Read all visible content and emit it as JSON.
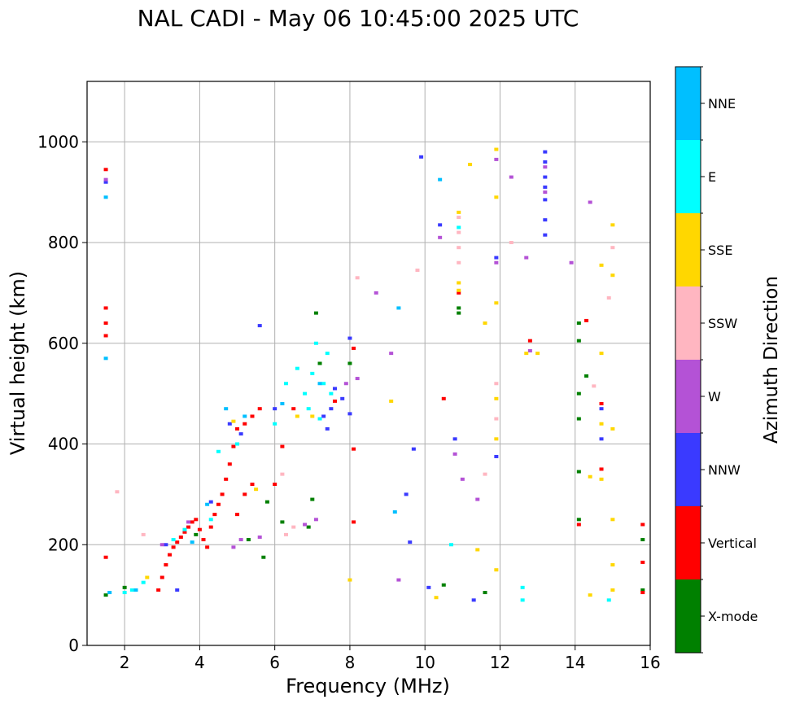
{
  "chart_data": {
    "type": "scatter",
    "title": "NAL CADI - May 06 10:45:00 2025 UTC",
    "xlabel": "Frequency (MHz)",
    "ylabel": "Virtual height (km)",
    "xlim": [
      1,
      16
    ],
    "ylim": [
      0,
      1120
    ],
    "x_ticks": [
      2,
      4,
      6,
      8,
      10,
      12,
      14,
      16
    ],
    "y_ticks": [
      0,
      200,
      400,
      600,
      800,
      1000
    ],
    "x_tick_labels": [
      "2",
      "4",
      "6",
      "8",
      "10",
      "12",
      "14",
      "16"
    ],
    "y_tick_labels": [
      "0",
      "200",
      "400",
      "600",
      "800",
      "1000"
    ],
    "grid": true,
    "colorbar": {
      "label": "Azimuth Direction",
      "categories": [
        {
          "name": "X-mode",
          "color": "#008000"
        },
        {
          "name": "Vertical",
          "color": "#ff0000"
        },
        {
          "name": "NNW",
          "color": "#3a3aff"
        },
        {
          "name": "W",
          "color": "#b452d6"
        },
        {
          "name": "SSW",
          "color": "#ffb6c1"
        },
        {
          "name": "SSE",
          "color": "#ffd700"
        },
        {
          "name": "E",
          "color": "#00ffff"
        },
        {
          "name": "NNE",
          "color": "#00bfff"
        }
      ]
    },
    "series": [
      {
        "name": "X-mode",
        "points": [
          [
            1.5,
            100
          ],
          [
            2.0,
            115
          ],
          [
            3.9,
            220
          ],
          [
            5.3,
            210
          ],
          [
            5.7,
            175
          ],
          [
            5.8,
            285
          ],
          [
            6.2,
            245
          ],
          [
            6.9,
            235
          ],
          [
            7.0,
            290
          ],
          [
            7.2,
            560
          ],
          [
            7.1,
            660
          ],
          [
            8.0,
            560
          ],
          [
            10.5,
            120
          ],
          [
            10.9,
            670
          ],
          [
            10.9,
            660
          ],
          [
            11.6,
            105
          ],
          [
            14.1,
            640
          ],
          [
            14.1,
            605
          ],
          [
            14.1,
            500
          ],
          [
            14.1,
            450
          ],
          [
            14.1,
            345
          ],
          [
            14.1,
            250
          ],
          [
            14.3,
            535
          ],
          [
            15.8,
            210
          ],
          [
            15.8,
            110
          ]
        ]
      },
      {
        "name": "Vertical",
        "points": [
          [
            1.5,
            945
          ],
          [
            1.5,
            670
          ],
          [
            1.5,
            640
          ],
          [
            1.5,
            615
          ],
          [
            1.5,
            175
          ],
          [
            2.9,
            110
          ],
          [
            3.0,
            135
          ],
          [
            3.1,
            160
          ],
          [
            3.2,
            180
          ],
          [
            3.3,
            195
          ],
          [
            3.4,
            205
          ],
          [
            3.5,
            215
          ],
          [
            3.6,
            225
          ],
          [
            3.7,
            235
          ],
          [
            3.8,
            245
          ],
          [
            3.9,
            250
          ],
          [
            4.0,
            230
          ],
          [
            4.1,
            210
          ],
          [
            4.2,
            195
          ],
          [
            4.3,
            235
          ],
          [
            4.4,
            260
          ],
          [
            4.5,
            280
          ],
          [
            4.6,
            300
          ],
          [
            4.7,
            330
          ],
          [
            4.8,
            360
          ],
          [
            4.9,
            395
          ],
          [
            5.0,
            430
          ],
          [
            5.2,
            440
          ],
          [
            5.4,
            455
          ],
          [
            5.6,
            470
          ],
          [
            5.0,
            260
          ],
          [
            5.2,
            300
          ],
          [
            5.4,
            320
          ],
          [
            6.0,
            320
          ],
          [
            6.2,
            395
          ],
          [
            6.5,
            470
          ],
          [
            7.6,
            485
          ],
          [
            8.1,
            590
          ],
          [
            8.1,
            390
          ],
          [
            8.1,
            245
          ],
          [
            10.5,
            490
          ],
          [
            10.9,
            700
          ],
          [
            12.8,
            605
          ],
          [
            14.3,
            645
          ],
          [
            14.1,
            240
          ],
          [
            14.7,
            480
          ],
          [
            14.7,
            350
          ],
          [
            15.8,
            240
          ],
          [
            15.8,
            165
          ],
          [
            15.8,
            105
          ]
        ]
      },
      {
        "name": "NNW",
        "points": [
          [
            1.5,
            920
          ],
          [
            3.1,
            200
          ],
          [
            3.4,
            110
          ],
          [
            4.3,
            285
          ],
          [
            4.8,
            440
          ],
          [
            5.1,
            420
          ],
          [
            5.6,
            635
          ],
          [
            6.0,
            470
          ],
          [
            7.3,
            455
          ],
          [
            7.4,
            430
          ],
          [
            7.5,
            470
          ],
          [
            7.6,
            510
          ],
          [
            7.8,
            490
          ],
          [
            8.0,
            460
          ],
          [
            8.0,
            610
          ],
          [
            9.6,
            205
          ],
          [
            9.7,
            390
          ],
          [
            9.5,
            300
          ],
          [
            9.9,
            970
          ],
          [
            10.1,
            115
          ],
          [
            10.4,
            835
          ],
          [
            10.8,
            410
          ],
          [
            11.3,
            90
          ],
          [
            11.9,
            375
          ],
          [
            11.9,
            770
          ],
          [
            13.2,
            980
          ],
          [
            13.2,
            960
          ],
          [
            13.2,
            930
          ],
          [
            13.2,
            910
          ],
          [
            13.2,
            885
          ],
          [
            13.2,
            845
          ],
          [
            13.2,
            815
          ],
          [
            14.7,
            410
          ],
          [
            14.7,
            470
          ]
        ]
      },
      {
        "name": "W",
        "points": [
          [
            1.5,
            925
          ],
          [
            3.0,
            200
          ],
          [
            3.7,
            245
          ],
          [
            4.9,
            195
          ],
          [
            5.1,
            210
          ],
          [
            5.6,
            215
          ],
          [
            6.8,
            240
          ],
          [
            7.1,
            250
          ],
          [
            7.9,
            520
          ],
          [
            8.2,
            530
          ],
          [
            8.7,
            700
          ],
          [
            9.1,
            580
          ],
          [
            9.3,
            130
          ],
          [
            10.4,
            810
          ],
          [
            10.8,
            380
          ],
          [
            11.0,
            330
          ],
          [
            11.4,
            290
          ],
          [
            11.9,
            760
          ],
          [
            11.9,
            965
          ],
          [
            12.3,
            930
          ],
          [
            12.7,
            770
          ],
          [
            12.8,
            585
          ],
          [
            13.2,
            950
          ],
          [
            13.2,
            900
          ],
          [
            14.4,
            880
          ],
          [
            13.9,
            760
          ]
        ]
      },
      {
        "name": "SSW",
        "points": [
          [
            1.8,
            305
          ],
          [
            2.5,
            220
          ],
          [
            6.3,
            220
          ],
          [
            6.5,
            235
          ],
          [
            6.2,
            340
          ],
          [
            8.2,
            730
          ],
          [
            9.8,
            745
          ],
          [
            10.9,
            850
          ],
          [
            10.9,
            820
          ],
          [
            10.9,
            790
          ],
          [
            10.9,
            760
          ],
          [
            11.6,
            340
          ],
          [
            11.9,
            450
          ],
          [
            11.9,
            520
          ],
          [
            12.3,
            800
          ],
          [
            14.5,
            515
          ],
          [
            14.9,
            690
          ],
          [
            15.0,
            790
          ]
        ]
      },
      {
        "name": "SSE",
        "points": [
          [
            2.6,
            135
          ],
          [
            4.9,
            445
          ],
          [
            5.5,
            310
          ],
          [
            6.6,
            455
          ],
          [
            7.0,
            455
          ],
          [
            8.0,
            130
          ],
          [
            9.1,
            485
          ],
          [
            10.3,
            95
          ],
          [
            10.9,
            720
          ],
          [
            10.9,
            705
          ],
          [
            10.9,
            860
          ],
          [
            11.2,
            955
          ],
          [
            11.4,
            190
          ],
          [
            11.6,
            640
          ],
          [
            11.9,
            150
          ],
          [
            11.9,
            985
          ],
          [
            11.9,
            890
          ],
          [
            11.9,
            680
          ],
          [
            11.9,
            490
          ],
          [
            11.9,
            410
          ],
          [
            12.7,
            580
          ],
          [
            13.0,
            580
          ],
          [
            14.4,
            335
          ],
          [
            14.4,
            100
          ],
          [
            14.7,
            580
          ],
          [
            14.7,
            440
          ],
          [
            14.7,
            330
          ],
          [
            14.7,
            755
          ],
          [
            15.0,
            835
          ],
          [
            15.0,
            735
          ],
          [
            15.0,
            430
          ],
          [
            15.0,
            250
          ],
          [
            15.0,
            160
          ],
          [
            15.0,
            110
          ]
        ]
      },
      {
        "name": "E",
        "points": [
          [
            2.0,
            105
          ],
          [
            2.2,
            110
          ],
          [
            2.5,
            125
          ],
          [
            3.3,
            210
          ],
          [
            3.6,
            230
          ],
          [
            4.3,
            250
          ],
          [
            4.5,
            385
          ],
          [
            5.0,
            400
          ],
          [
            6.0,
            440
          ],
          [
            6.3,
            520
          ],
          [
            6.6,
            550
          ],
          [
            6.8,
            500
          ],
          [
            6.9,
            470
          ],
          [
            7.0,
            540
          ],
          [
            7.1,
            600
          ],
          [
            7.3,
            520
          ],
          [
            7.4,
            580
          ],
          [
            7.5,
            500
          ],
          [
            7.2,
            450
          ],
          [
            10.7,
            200
          ],
          [
            10.9,
            830
          ],
          [
            12.6,
            115
          ],
          [
            12.6,
            90
          ],
          [
            14.9,
            90
          ]
        ]
      },
      {
        "name": "NNE",
        "points": [
          [
            1.5,
            890
          ],
          [
            1.5,
            570
          ],
          [
            1.6,
            105
          ],
          [
            2.3,
            110
          ],
          [
            3.8,
            205
          ],
          [
            4.2,
            280
          ],
          [
            4.7,
            470
          ],
          [
            5.2,
            455
          ],
          [
            6.2,
            480
          ],
          [
            7.2,
            520
          ],
          [
            9.3,
            670
          ],
          [
            9.2,
            265
          ],
          [
            10.4,
            925
          ]
        ]
      }
    ]
  }
}
